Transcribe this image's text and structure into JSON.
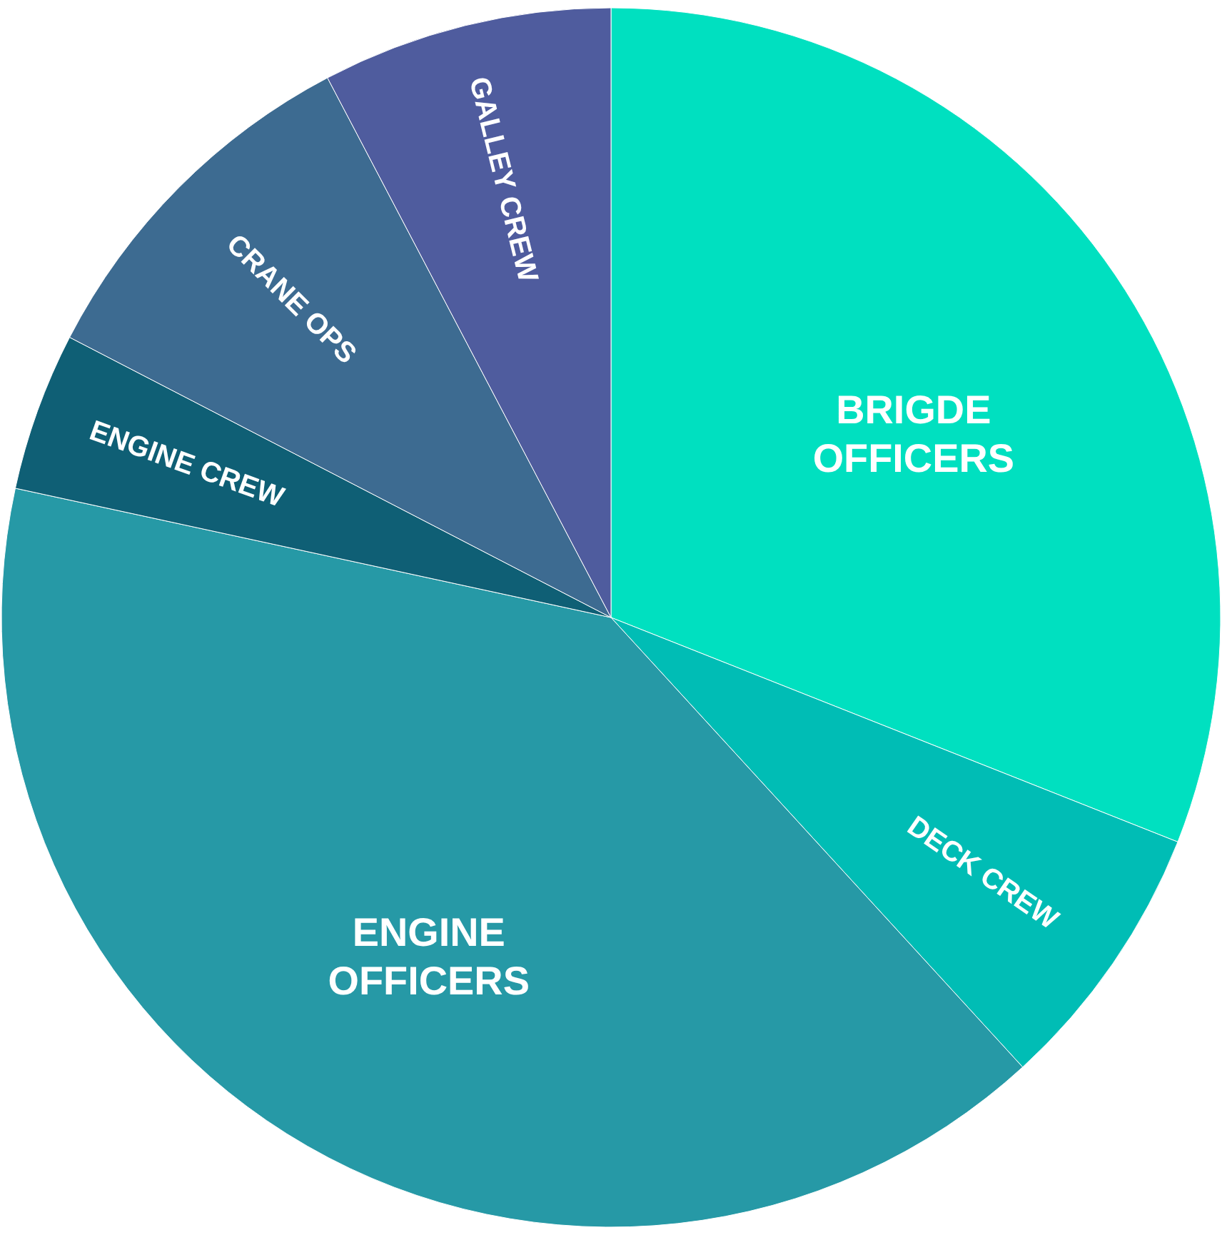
{
  "chart_data": {
    "type": "pie",
    "categories": [
      "BRIGDE OFFICERS",
      "DECK CREW",
      "ENGINE OFFICERS",
      "ENGINE CREW",
      "CRANE OPS",
      "GALLEY CREW"
    ],
    "values": [
      31.0,
      7.2,
      40.2,
      4.2,
      9.7,
      7.7
    ],
    "colors": [
      "#00e0c0",
      "#00bdb5",
      "#2699a6",
      "#0f5f75",
      "#3d6b91",
      "#4f5c9e"
    ],
    "legend": false
  }
}
